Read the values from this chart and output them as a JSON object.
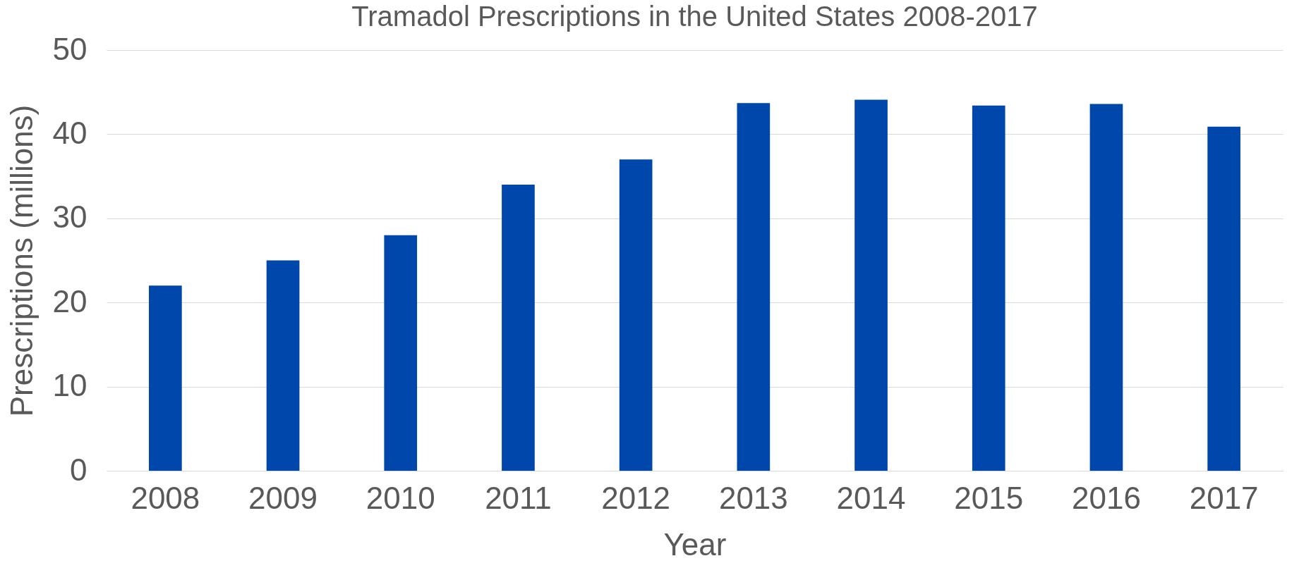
{
  "chart_data": {
    "type": "bar",
    "title": "Tramadol Prescriptions in the United States 2008-2017",
    "xlabel": "Year",
    "ylabel": "Prescriptions (millions)",
    "categories": [
      "2008",
      "2009",
      "2010",
      "2011",
      "2012",
      "2013",
      "2014",
      "2015",
      "2016",
      "2017"
    ],
    "values": [
      22,
      25,
      28,
      34,
      37,
      43.7,
      44.1,
      43.4,
      43.6,
      40.9
    ],
    "color": "#0047ab",
    "ylim": [
      0,
      50
    ],
    "yticks": [
      0,
      10,
      20,
      30,
      40,
      50
    ],
    "grid": "y"
  }
}
